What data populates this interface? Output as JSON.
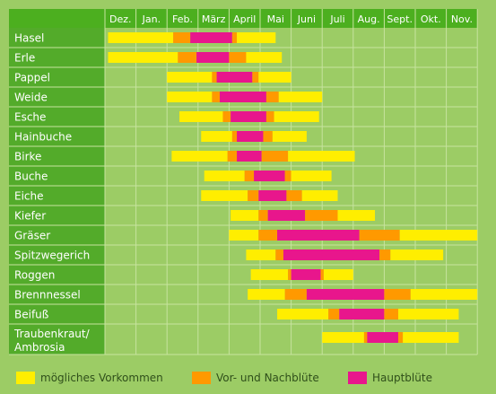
{
  "colors": {
    "background": "#9ccc65",
    "header": "#4caf1f",
    "label_column": "#53ab2a",
    "grid_line": "#c7e39f",
    "possible": "#ffee00",
    "pre_post": "#ff9900",
    "main": "#e8168c"
  },
  "chart_data": {
    "type": "bar",
    "orientation": "horizontal",
    "months": [
      "Dez.",
      "Jan.",
      "Feb.",
      "März",
      "April",
      "Mai",
      "Juni",
      "Juli",
      "Aug.",
      "Sept.",
      "Okt.",
      "Nov."
    ],
    "legend": [
      {
        "key": "possible",
        "label": "mögliches Vorkommen"
      },
      {
        "key": "pre_post",
        "label": "Vor- und Nachblüte"
      },
      {
        "key": "main",
        "label": "Hauptblüte"
      }
    ],
    "rows": [
      {
        "plant": "Hasel",
        "segments": [
          {
            "type": "possible",
            "start": 0.1,
            "end": 2.2
          },
          {
            "type": "pre_post",
            "start": 2.2,
            "end": 2.75
          },
          {
            "type": "main",
            "start": 2.75,
            "end": 4.1
          },
          {
            "type": "pre_post",
            "start": 4.1,
            "end": 4.25
          },
          {
            "type": "possible",
            "start": 4.25,
            "end": 5.5
          }
        ]
      },
      {
        "plant": "Erle",
        "segments": [
          {
            "type": "possible",
            "start": 0.1,
            "end": 2.35
          },
          {
            "type": "pre_post",
            "start": 2.35,
            "end": 2.95
          },
          {
            "type": "main",
            "start": 2.95,
            "end": 4.0
          },
          {
            "type": "pre_post",
            "start": 4.0,
            "end": 4.55
          },
          {
            "type": "possible",
            "start": 4.55,
            "end": 5.7
          }
        ]
      },
      {
        "plant": "Pappel",
        "segments": [
          {
            "type": "possible",
            "start": 2.0,
            "end": 3.45
          },
          {
            "type": "pre_post",
            "start": 3.45,
            "end": 3.6
          },
          {
            "type": "main",
            "start": 3.6,
            "end": 4.75
          },
          {
            "type": "pre_post",
            "start": 4.75,
            "end": 4.95
          },
          {
            "type": "possible",
            "start": 4.95,
            "end": 6.0
          }
        ]
      },
      {
        "plant": "Weide",
        "segments": [
          {
            "type": "possible",
            "start": 2.0,
            "end": 3.45
          },
          {
            "type": "pre_post",
            "start": 3.45,
            "end": 3.7
          },
          {
            "type": "main",
            "start": 3.7,
            "end": 5.2
          },
          {
            "type": "pre_post",
            "start": 5.2,
            "end": 5.6
          },
          {
            "type": "possible",
            "start": 5.6,
            "end": 7.0
          }
        ]
      },
      {
        "plant": "Esche",
        "segments": [
          {
            "type": "possible",
            "start": 2.4,
            "end": 3.8
          },
          {
            "type": "pre_post",
            "start": 3.8,
            "end": 4.05
          },
          {
            "type": "main",
            "start": 4.05,
            "end": 5.2
          },
          {
            "type": "pre_post",
            "start": 5.2,
            "end": 5.45
          },
          {
            "type": "possible",
            "start": 5.45,
            "end": 6.9
          }
        ]
      },
      {
        "plant": "Hainbuche",
        "segments": [
          {
            "type": "possible",
            "start": 3.1,
            "end": 4.1
          },
          {
            "type": "pre_post",
            "start": 4.1,
            "end": 4.25
          },
          {
            "type": "main",
            "start": 4.25,
            "end": 5.1
          },
          {
            "type": "pre_post",
            "start": 5.1,
            "end": 5.4
          },
          {
            "type": "possible",
            "start": 5.4,
            "end": 6.5
          }
        ]
      },
      {
        "plant": "Birke",
        "segments": [
          {
            "type": "possible",
            "start": 2.15,
            "end": 3.95
          },
          {
            "type": "pre_post",
            "start": 3.95,
            "end": 4.25
          },
          {
            "type": "main",
            "start": 4.25,
            "end": 5.05
          },
          {
            "type": "pre_post",
            "start": 5.05,
            "end": 5.9
          },
          {
            "type": "possible",
            "start": 5.9,
            "end": 8.05
          }
        ]
      },
      {
        "plant": "Buche",
        "segments": [
          {
            "type": "possible",
            "start": 3.2,
            "end": 4.5
          },
          {
            "type": "pre_post",
            "start": 4.5,
            "end": 4.8
          },
          {
            "type": "main",
            "start": 4.8,
            "end": 5.8
          },
          {
            "type": "pre_post",
            "start": 5.8,
            "end": 6.0
          },
          {
            "type": "possible",
            "start": 6.0,
            "end": 7.3
          }
        ]
      },
      {
        "plant": "Eiche",
        "segments": [
          {
            "type": "possible",
            "start": 3.1,
            "end": 4.6
          },
          {
            "type": "pre_post",
            "start": 4.6,
            "end": 4.95
          },
          {
            "type": "main",
            "start": 4.95,
            "end": 5.85
          },
          {
            "type": "pre_post",
            "start": 5.85,
            "end": 6.35
          },
          {
            "type": "possible",
            "start": 6.35,
            "end": 7.5
          }
        ]
      },
      {
        "plant": "Kiefer",
        "segments": [
          {
            "type": "possible",
            "start": 4.05,
            "end": 4.95
          },
          {
            "type": "pre_post",
            "start": 4.95,
            "end": 5.25
          },
          {
            "type": "main",
            "start": 5.25,
            "end": 6.45
          },
          {
            "type": "pre_post",
            "start": 6.45,
            "end": 7.5
          },
          {
            "type": "possible",
            "start": 7.5,
            "end": 8.7
          }
        ]
      },
      {
        "plant": "Gräser",
        "segments": [
          {
            "type": "possible",
            "start": 4.0,
            "end": 4.95
          },
          {
            "type": "pre_post",
            "start": 4.95,
            "end": 5.55
          },
          {
            "type": "main",
            "start": 5.55,
            "end": 8.2
          },
          {
            "type": "pre_post",
            "start": 8.2,
            "end": 9.5
          },
          {
            "type": "possible",
            "start": 9.5,
            "end": 12.0
          }
        ]
      },
      {
        "plant": "Spitzwegerich",
        "segments": [
          {
            "type": "possible",
            "start": 4.55,
            "end": 5.5
          },
          {
            "type": "pre_post",
            "start": 5.5,
            "end": 5.75
          },
          {
            "type": "main",
            "start": 5.75,
            "end": 8.85
          },
          {
            "type": "pre_post",
            "start": 8.85,
            "end": 9.2
          },
          {
            "type": "possible",
            "start": 9.2,
            "end": 10.9
          }
        ]
      },
      {
        "plant": "Roggen",
        "segments": [
          {
            "type": "possible",
            "start": 4.7,
            "end": 5.9
          },
          {
            "type": "pre_post",
            "start": 5.9,
            "end": 6.0
          },
          {
            "type": "main",
            "start": 6.0,
            "end": 6.95
          },
          {
            "type": "pre_post",
            "start": 6.95,
            "end": 7.05
          },
          {
            "type": "possible",
            "start": 7.05,
            "end": 8.0
          }
        ]
      },
      {
        "plant": "Brennnessel",
        "segments": [
          {
            "type": "possible",
            "start": 4.6,
            "end": 5.8
          },
          {
            "type": "pre_post",
            "start": 5.8,
            "end": 6.5
          },
          {
            "type": "main",
            "start": 6.5,
            "end": 9.0
          },
          {
            "type": "pre_post",
            "start": 9.0,
            "end": 9.85
          },
          {
            "type": "possible",
            "start": 9.85,
            "end": 12.0
          }
        ]
      },
      {
        "plant": "Beifuß",
        "segments": [
          {
            "type": "possible",
            "start": 5.55,
            "end": 7.2
          },
          {
            "type": "pre_post",
            "start": 7.2,
            "end": 7.55
          },
          {
            "type": "main",
            "start": 7.55,
            "end": 9.0
          },
          {
            "type": "pre_post",
            "start": 9.0,
            "end": 9.45
          },
          {
            "type": "possible",
            "start": 9.45,
            "end": 11.4
          }
        ]
      },
      {
        "plant": "Traubenkraut/\nAmbrosia",
        "segments": [
          {
            "type": "possible",
            "start": 7.0,
            "end": 8.35
          },
          {
            "type": "pre_post",
            "start": 8.35,
            "end": 8.45
          },
          {
            "type": "main",
            "start": 8.45,
            "end": 9.45
          },
          {
            "type": "pre_post",
            "start": 9.45,
            "end": 9.6
          },
          {
            "type": "possible",
            "start": 9.6,
            "end": 11.4
          }
        ]
      }
    ]
  }
}
